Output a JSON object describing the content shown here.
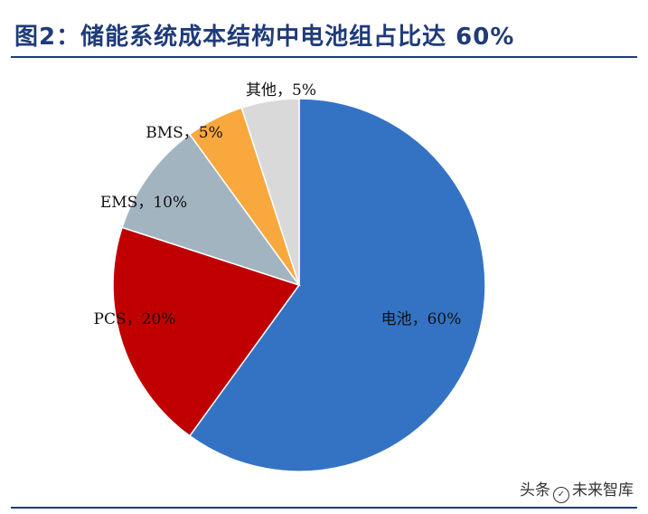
{
  "title": "图2：储能系统成本结构中电池组占比达 60%",
  "watermark": {
    "prefix": "头条",
    "name": "未来智库"
  },
  "chart_data": {
    "type": "pie",
    "categories": [
      "电池",
      "PCS",
      "EMS",
      "BMS",
      "其他"
    ],
    "values": [
      60,
      20,
      10,
      5,
      5
    ],
    "labels": [
      "电池，60%",
      "PCS，20%",
      "EMS，10%",
      "BMS，5%",
      "其他，5%"
    ],
    "colors": [
      "#3473c4",
      "#c00000",
      "#a3b4c1",
      "#f9a83d",
      "#d9d9d9"
    ],
    "start": "12 o'clock",
    "direction": "clockwise"
  }
}
